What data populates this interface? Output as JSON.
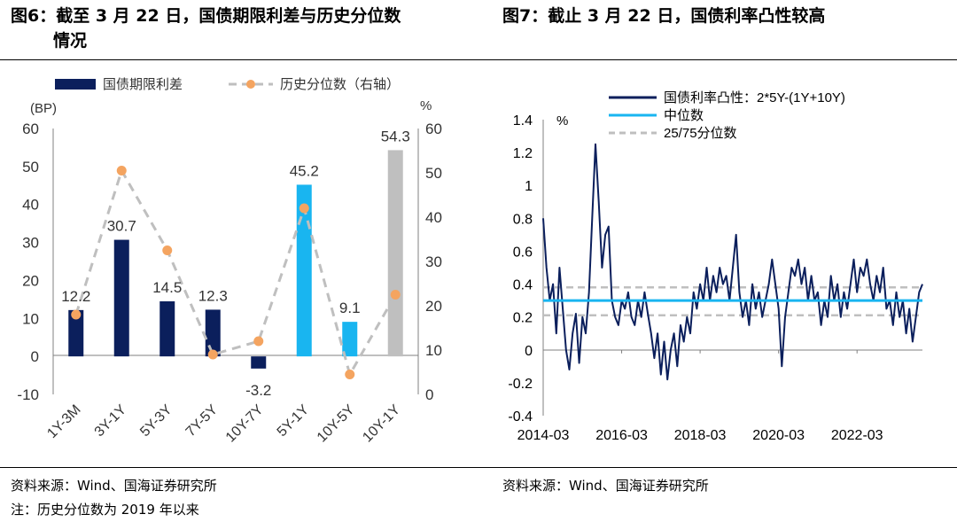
{
  "fig6": {
    "title_line1": "图6：截至 3 月 22 日，国债期限利差与历史分位数",
    "title_line2": "情况",
    "source": "资料来源：Wind、国海证券研究所",
    "note": "注：历史分位数为 2019 年以来"
  },
  "fig7": {
    "title": "图7：截止 3 月 22 日，国债利率凸性较高",
    "source": "资料来源：Wind、国海证券研究所"
  },
  "chart_data": [
    {
      "type": "bar",
      "left_unit": "(BP)",
      "right_unit": "%",
      "categories": [
        "1Y-3M",
        "3Y-1Y",
        "5Y-3Y",
        "7Y-5Y",
        "10Y-7Y",
        "5Y-1Y",
        "10Y-5Y",
        "10Y-1Y"
      ],
      "series": [
        {
          "name": "国债期限利差",
          "axis": "left",
          "values": [
            12.2,
            30.7,
            14.5,
            12.3,
            -3.2,
            45.2,
            9.1,
            54.3
          ],
          "colors": [
            "#0b1f5c",
            "#0b1f5c",
            "#0b1f5c",
            "#0b1f5c",
            "#0b1f5c",
            "#19b5f0",
            "#19b5f0",
            "#bfbfbf"
          ]
        },
        {
          "name": "历史分位数（右轴）",
          "axis": "right",
          "values": [
            18,
            50.5,
            32.5,
            9,
            12,
            42,
            4.5,
            22.5
          ],
          "color": "#f4a460"
        }
      ],
      "data_labels": [
        "12.2",
        "30.7",
        "14.5",
        "12.3",
        "-3.2",
        "45.2",
        "9.1",
        "54.3"
      ],
      "ylim_left": [
        -10,
        60
      ],
      "yticks_left": [
        "-10",
        "0",
        "10",
        "20",
        "30",
        "40",
        "50",
        "60"
      ],
      "ylim_right": [
        0,
        60
      ],
      "yticks_right": [
        "0",
        "10",
        "20",
        "30",
        "40",
        "50",
        "60"
      ],
      "legend": "top"
    },
    {
      "type": "line",
      "y_unit": "%",
      "ylim": [
        -0.4,
        1.4
      ],
      "yticks": [
        "-0.4",
        "-0.2",
        "0",
        "0.2",
        "0.4",
        "0.6",
        "0.8",
        "1",
        "1.2",
        "1.4"
      ],
      "xlim": [
        "2014-03",
        "2023-11"
      ],
      "xticks": [
        "2014-03",
        "2016-03",
        "2018-03",
        "2020-03",
        "2022-03"
      ],
      "legend": "top-right",
      "series": [
        {
          "name": "国债利率凸性：2*5Y-(1Y+10Y)",
          "color": "#0b1f5c",
          "points": [
            [
              "2014-03",
              0.8
            ],
            [
              "2014-04",
              0.5
            ],
            [
              "2014-05",
              0.3
            ],
            [
              "2014-06",
              0.4
            ],
            [
              "2014-07",
              0.1
            ],
            [
              "2014-08",
              0.5
            ],
            [
              "2014-09",
              0.25
            ],
            [
              "2014-10",
              0.0
            ],
            [
              "2014-11",
              -0.12
            ],
            [
              "2014-12",
              0.1
            ],
            [
              "2015-01",
              0.22
            ],
            [
              "2015-02",
              -0.08
            ],
            [
              "2015-03",
              0.2
            ],
            [
              "2015-04",
              0.1
            ],
            [
              "2015-05",
              0.35
            ],
            [
              "2015-06",
              0.8
            ],
            [
              "2015-07",
              1.25
            ],
            [
              "2015-08",
              0.9
            ],
            [
              "2015-09",
              0.5
            ],
            [
              "2015-10",
              0.7
            ],
            [
              "2015-11",
              0.75
            ],
            [
              "2015-12",
              0.3
            ],
            [
              "2016-01",
              0.2
            ],
            [
              "2016-02",
              0.15
            ],
            [
              "2016-03",
              0.3
            ],
            [
              "2016-04",
              0.25
            ],
            [
              "2016-05",
              0.35
            ],
            [
              "2016-06",
              0.2
            ],
            [
              "2016-07",
              0.15
            ],
            [
              "2016-08",
              0.3
            ],
            [
              "2016-09",
              0.2
            ],
            [
              "2016-10",
              0.35
            ],
            [
              "2016-11",
              0.22
            ],
            [
              "2016-12",
              0.1
            ],
            [
              "2017-01",
              -0.05
            ],
            [
              "2017-02",
              0.1
            ],
            [
              "2017-03",
              -0.15
            ],
            [
              "2017-04",
              0.05
            ],
            [
              "2017-05",
              -0.18
            ],
            [
              "2017-06",
              0.0
            ],
            [
              "2017-07",
              0.1
            ],
            [
              "2017-08",
              -0.1
            ],
            [
              "2017-09",
              0.15
            ],
            [
              "2017-10",
              0.05
            ],
            [
              "2017-11",
              0.2
            ],
            [
              "2017-12",
              0.1
            ],
            [
              "2018-01",
              0.35
            ],
            [
              "2018-02",
              0.25
            ],
            [
              "2018-03",
              0.4
            ],
            [
              "2018-04",
              0.3
            ],
            [
              "2018-05",
              0.5
            ],
            [
              "2018-06",
              0.3
            ],
            [
              "2018-07",
              0.45
            ],
            [
              "2018-08",
              0.35
            ],
            [
              "2018-09",
              0.5
            ],
            [
              "2018-10",
              0.4
            ],
            [
              "2018-11",
              0.45
            ],
            [
              "2018-12",
              0.3
            ],
            [
              "2019-01",
              0.5
            ],
            [
              "2019-02",
              0.7
            ],
            [
              "2019-03",
              0.35
            ],
            [
              "2019-04",
              0.2
            ],
            [
              "2019-05",
              0.3
            ],
            [
              "2019-06",
              0.15
            ],
            [
              "2019-07",
              0.4
            ],
            [
              "2019-08",
              0.25
            ],
            [
              "2019-09",
              0.35
            ],
            [
              "2019-10",
              0.2
            ],
            [
              "2019-11",
              0.3
            ],
            [
              "2019-12",
              0.4
            ],
            [
              "2020-01",
              0.55
            ],
            [
              "2020-02",
              0.4
            ],
            [
              "2020-03",
              0.25
            ],
            [
              "2020-04",
              -0.1
            ],
            [
              "2020-05",
              0.2
            ],
            [
              "2020-06",
              0.35
            ],
            [
              "2020-07",
              0.5
            ],
            [
              "2020-08",
              0.45
            ],
            [
              "2020-09",
              0.55
            ],
            [
              "2020-10",
              0.4
            ],
            [
              "2020-11",
              0.5
            ],
            [
              "2020-12",
              0.3
            ],
            [
              "2021-01",
              0.45
            ],
            [
              "2021-02",
              0.3
            ],
            [
              "2021-03",
              0.35
            ],
            [
              "2021-04",
              0.15
            ],
            [
              "2021-05",
              0.3
            ],
            [
              "2021-06",
              0.2
            ],
            [
              "2021-07",
              0.45
            ],
            [
              "2021-08",
              0.3
            ],
            [
              "2021-09",
              0.4
            ],
            [
              "2021-10",
              0.2
            ],
            [
              "2021-11",
              0.35
            ],
            [
              "2021-12",
              0.25
            ],
            [
              "2022-01",
              0.4
            ],
            [
              "2022-02",
              0.55
            ],
            [
              "2022-03",
              0.35
            ],
            [
              "2022-04",
              0.5
            ],
            [
              "2022-05",
              0.45
            ],
            [
              "2022-06",
              0.55
            ],
            [
              "2022-07",
              0.4
            ],
            [
              "2022-08",
              0.3
            ],
            [
              "2022-09",
              0.45
            ],
            [
              "2022-10",
              0.35
            ],
            [
              "2022-11",
              0.5
            ],
            [
              "2022-12",
              0.25
            ],
            [
              "2023-01",
              0.3
            ],
            [
              "2023-02",
              0.15
            ],
            [
              "2023-03",
              0.35
            ],
            [
              "2023-04",
              0.2
            ],
            [
              "2023-05",
              0.3
            ],
            [
              "2023-06",
              0.1
            ],
            [
              "2023-07",
              0.25
            ],
            [
              "2023-08",
              0.05
            ],
            [
              "2023-09",
              0.2
            ],
            [
              "2023-10",
              0.35
            ],
            [
              "2023-11",
              0.4
            ]
          ]
        },
        {
          "name": "中位数",
          "color": "#19b5f0",
          "value": 0.3
        },
        {
          "name": "25/75分位数",
          "color": "#bfbfbf",
          "values": [
            0.21,
            0.38
          ]
        }
      ]
    }
  ]
}
